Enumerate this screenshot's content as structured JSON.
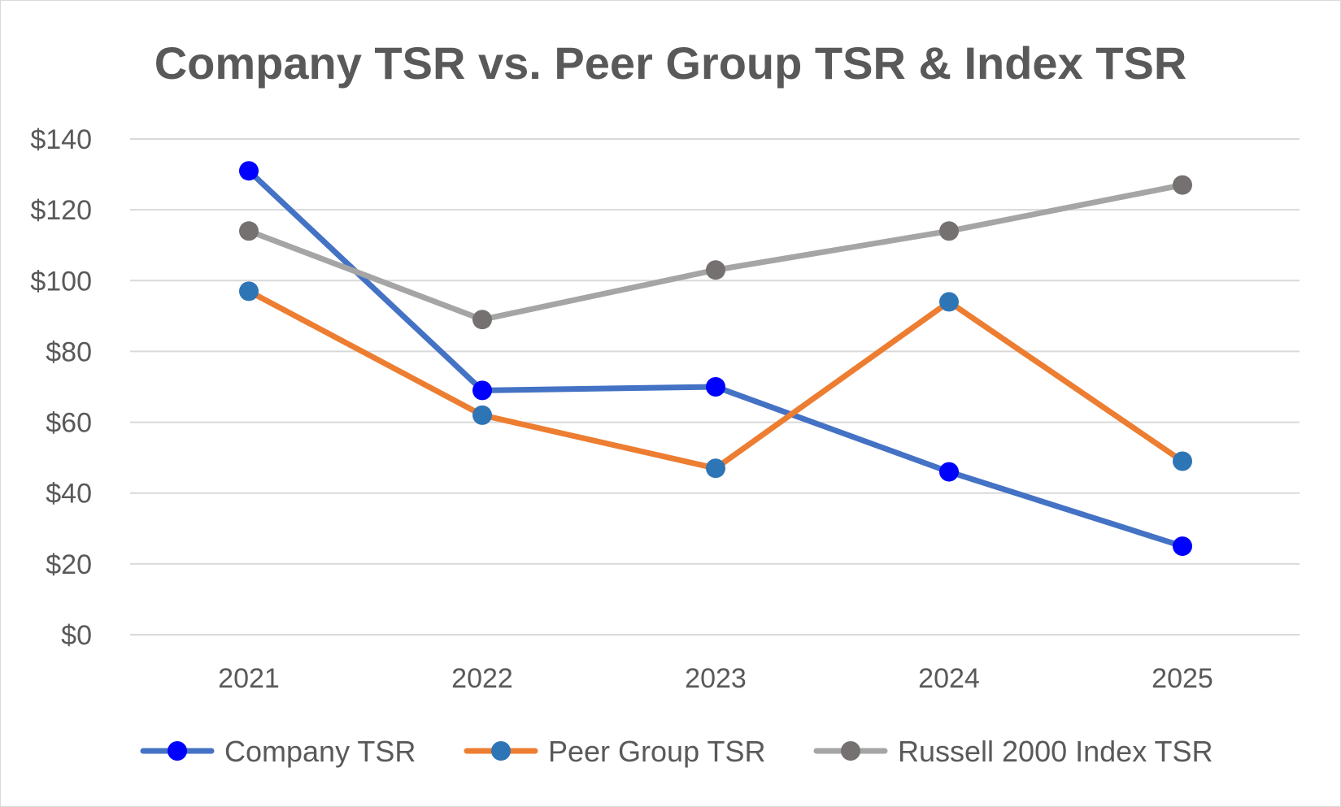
{
  "chart_data": {
    "type": "line",
    "title": "Company TSR vs. Peer Group TSR & Index TSR",
    "xlabel": "",
    "ylabel": "",
    "categories": [
      "2021",
      "2022",
      "2023",
      "2024",
      "2025"
    ],
    "ylim": [
      0,
      140
    ],
    "y_ticks": [
      0,
      20,
      40,
      60,
      80,
      100,
      120,
      140
    ],
    "y_tick_labels": [
      "$0",
      "$20",
      "$40",
      "$60",
      "$80",
      "$100",
      "$120",
      "$140"
    ],
    "grid": true,
    "legend_position": "bottom",
    "series": [
      {
        "name": "Company TSR",
        "values": [
          131,
          69,
          70,
          46,
          25
        ],
        "line_color": "#4472c4",
        "marker_color": "#0000ff"
      },
      {
        "name": "Peer Group TSR",
        "values": [
          97,
          62,
          47,
          94,
          49
        ],
        "line_color": "#ed7d31",
        "marker_color": "#2e75b6"
      },
      {
        "name": "Russell 2000 Index TSR",
        "values": [
          114,
          89,
          103,
          114,
          127
        ],
        "line_color": "#a5a5a5",
        "marker_color": "#767171"
      }
    ]
  }
}
